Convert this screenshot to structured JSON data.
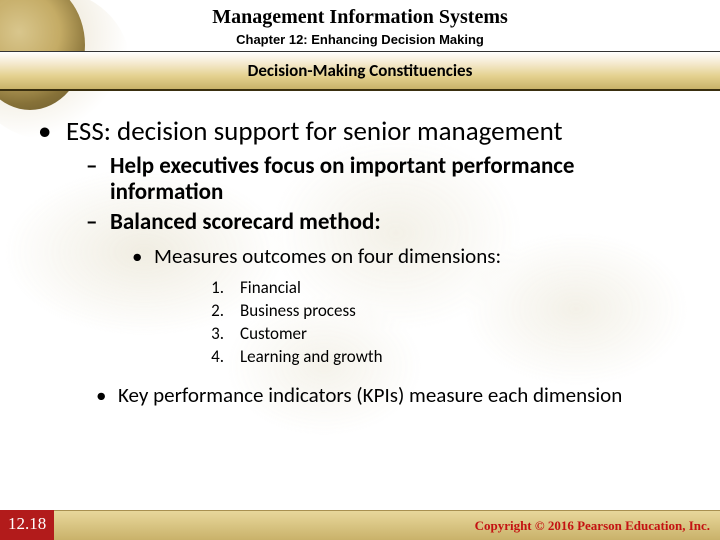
{
  "header": {
    "title": "Management Information Systems",
    "chapter": "Chapter 12: Enhancing Decision Making",
    "subtitle": "Decision-Making Constituencies"
  },
  "content": {
    "bullet1": "ESS: decision support for senior management",
    "sub1": "Help executives focus on important performance information",
    "sub2": "Balanced scorecard method:",
    "sub2_1": "Measures outcomes on four dimensions:",
    "dims": {
      "n1": "1.",
      "d1": "Financial",
      "n2": "2.",
      "d2": "Business process",
      "n3": "3.",
      "d3": "Customer",
      "n4": "4.",
      "d4": "Learning and growth"
    },
    "bullet2": "Key performance indicators (KPIs) measure each dimension"
  },
  "footer": {
    "slide_number": "12.18",
    "copyright": "Copyright © 2016 Pearson Education, Inc."
  },
  "style": {
    "accent_red": "#b21b1b",
    "copyright_red": "#c41212",
    "gold_band_from": "#f5ead0",
    "gold_band_to": "#c9b26a",
    "globe_outer": "#5a4a20",
    "globe_inner": "#d8c58a",
    "map_tint": "#dad2b6",
    "title_fontsize_pt": 15,
    "chapter_fontsize_pt": 10,
    "subtitle_fontsize_pt": 13,
    "lvl1_fontsize_pt": 20,
    "lvl2_fontsize_pt": 17,
    "lvl3_fontsize_pt": 16,
    "numlist_fontsize_pt": 13,
    "footer_fontsize_pt": 10
  }
}
